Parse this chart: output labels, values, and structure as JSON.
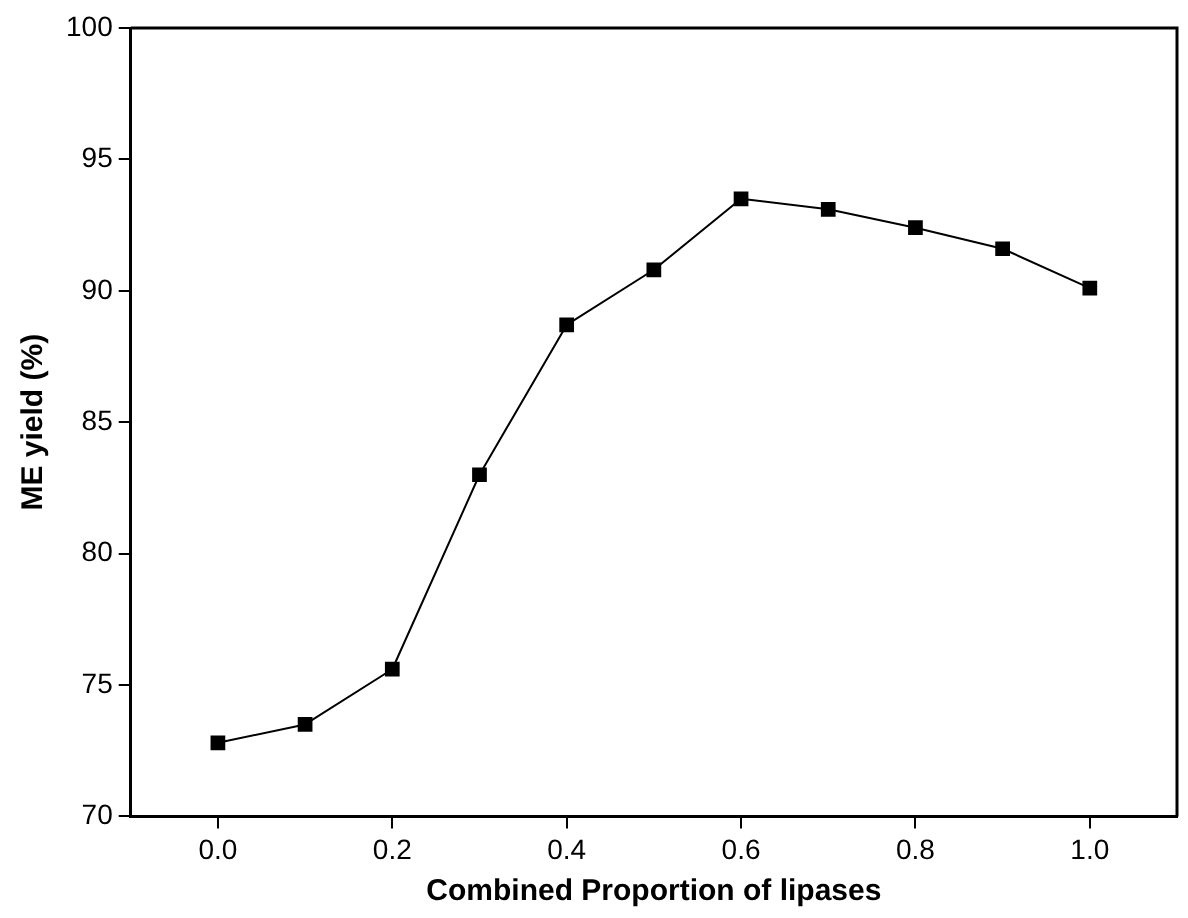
{
  "chart_data": {
    "type": "line",
    "xlabel": "Combined Proportion of lipases",
    "ylabel": "ME yield (%)",
    "x": [
      0.0,
      0.1,
      0.2,
      0.3,
      0.4,
      0.5,
      0.6,
      0.7,
      0.8,
      0.9,
      1.0
    ],
    "series": [
      {
        "color": "#000000",
        "values": [
          72.8,
          73.5,
          75.6,
          83.0,
          88.7,
          90.8,
          93.5,
          93.1,
          92.4,
          91.6,
          90.1
        ]
      }
    ],
    "xlim": [
      -0.1,
      1.1
    ],
    "xticks": [
      {
        "value": 0,
        "label": "0.0"
      },
      0.2,
      0.4,
      0.6,
      0.8,
      {
        "value": 1,
        "label": "1.0"
      }
    ],
    "ylim": [
      70,
      100
    ],
    "yticks": [
      70,
      75,
      80,
      85,
      90,
      95,
      100
    ],
    "grid": false,
    "legend": false,
    "marker": "square",
    "line_style": "solid"
  }
}
